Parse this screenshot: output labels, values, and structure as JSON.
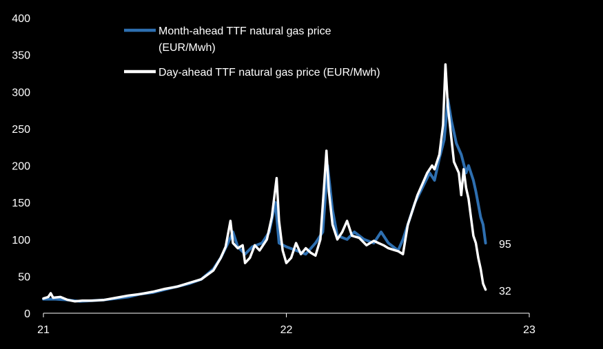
{
  "chart_data": {
    "type": "line",
    "title": "",
    "xlabel": "",
    "ylabel": "",
    "ylim": [
      0,
      400
    ],
    "xlim": [
      21,
      23
    ],
    "y_ticks": [
      0,
      50,
      100,
      150,
      200,
      250,
      300,
      350,
      400
    ],
    "x_ticks": [
      21,
      22,
      23
    ],
    "y_tick_labels": [
      "0",
      "50",
      "100",
      "150",
      "200",
      "250",
      "300",
      "350",
      "400"
    ],
    "x_tick_labels": [
      "21",
      "22",
      "23"
    ],
    "legend_position": "top",
    "grid": false,
    "background": "#000000",
    "series": [
      {
        "name": "Month-ahead TTF natural gas price (EUR/Mwh)",
        "legend_lines": [
          "Month-ahead TTF natural gas price",
          "(EUR/Mwh)"
        ],
        "color": "#2e6fb0",
        "end_label": "95",
        "points": [
          [
            21.0,
            19
          ],
          [
            21.05,
            19
          ],
          [
            21.1,
            18
          ],
          [
            21.15,
            16
          ],
          [
            21.2,
            17
          ],
          [
            21.25,
            18
          ],
          [
            21.3,
            20
          ],
          [
            21.35,
            22
          ],
          [
            21.4,
            26
          ],
          [
            21.45,
            28
          ],
          [
            21.5,
            32
          ],
          [
            21.55,
            36
          ],
          [
            21.6,
            40
          ],
          [
            21.65,
            46
          ],
          [
            21.7,
            60
          ],
          [
            21.73,
            75
          ],
          [
            21.76,
            95
          ],
          [
            21.78,
            110
          ],
          [
            21.8,
            90
          ],
          [
            21.83,
            80
          ],
          [
            21.86,
            90
          ],
          [
            21.9,
            95
          ],
          [
            21.93,
            110
          ],
          [
            21.955,
            150
          ],
          [
            21.97,
            95
          ],
          [
            22.0,
            90
          ],
          [
            22.04,
            85
          ],
          [
            22.08,
            80
          ],
          [
            22.12,
            95
          ],
          [
            22.15,
            110
          ],
          [
            22.17,
            200
          ],
          [
            22.19,
            140
          ],
          [
            22.21,
            105
          ],
          [
            22.25,
            100
          ],
          [
            22.28,
            110
          ],
          [
            22.32,
            100
          ],
          [
            22.36,
            95
          ],
          [
            22.39,
            110
          ],
          [
            22.42,
            95
          ],
          [
            22.44,
            90
          ],
          [
            22.46,
            85
          ],
          [
            22.48,
            100
          ],
          [
            22.5,
            120
          ],
          [
            22.53,
            150
          ],
          [
            22.56,
            170
          ],
          [
            22.59,
            190
          ],
          [
            22.61,
            180
          ],
          [
            22.63,
            210
          ],
          [
            22.65,
            235
          ],
          [
            22.665,
            290
          ],
          [
            22.68,
            260
          ],
          [
            22.7,
            230
          ],
          [
            22.72,
            215
          ],
          [
            22.74,
            190
          ],
          [
            22.75,
            200
          ],
          [
            22.77,
            180
          ],
          [
            22.78,
            165
          ],
          [
            22.8,
            130
          ],
          [
            22.81,
            120
          ],
          [
            22.82,
            95
          ]
        ]
      },
      {
        "name": "Day-ahead TTF natural gas price (EUR/Mwh)",
        "legend_lines": [
          "Day-ahead TTF natural gas price (EUR/Mwh)"
        ],
        "color": "#ffffff",
        "end_label": "32",
        "points": [
          [
            21.0,
            20
          ],
          [
            21.02,
            22
          ],
          [
            21.03,
            27
          ],
          [
            21.04,
            21
          ],
          [
            21.07,
            22
          ],
          [
            21.1,
            18
          ],
          [
            21.13,
            16
          ],
          [
            21.16,
            17
          ],
          [
            21.2,
            17
          ],
          [
            21.25,
            18
          ],
          [
            21.3,
            21
          ],
          [
            21.35,
            24
          ],
          [
            21.4,
            26
          ],
          [
            21.45,
            29
          ],
          [
            21.5,
            33
          ],
          [
            21.55,
            36
          ],
          [
            21.6,
            41
          ],
          [
            21.65,
            46
          ],
          [
            21.7,
            58
          ],
          [
            21.73,
            75
          ],
          [
            21.75,
            90
          ],
          [
            21.77,
            125
          ],
          [
            21.78,
            95
          ],
          [
            21.8,
            88
          ],
          [
            21.82,
            92
          ],
          [
            21.83,
            68
          ],
          [
            21.85,
            75
          ],
          [
            21.87,
            92
          ],
          [
            21.89,
            85
          ],
          [
            21.92,
            100
          ],
          [
            21.94,
            130
          ],
          [
            21.96,
            183
          ],
          [
            21.97,
            125
          ],
          [
            21.985,
            85
          ],
          [
            22.0,
            68
          ],
          [
            22.02,
            75
          ],
          [
            22.04,
            95
          ],
          [
            22.06,
            80
          ],
          [
            22.08,
            88
          ],
          [
            22.1,
            82
          ],
          [
            22.12,
            78
          ],
          [
            22.14,
            100
          ],
          [
            22.155,
            170
          ],
          [
            22.165,
            220
          ],
          [
            22.175,
            165
          ],
          [
            22.19,
            120
          ],
          [
            22.21,
            100
          ],
          [
            22.23,
            110
          ],
          [
            22.25,
            125
          ],
          [
            22.27,
            105
          ],
          [
            22.3,
            102
          ],
          [
            22.33,
            92
          ],
          [
            22.36,
            98
          ],
          [
            22.38,
            95
          ],
          [
            22.4,
            92
          ],
          [
            22.42,
            88
          ],
          [
            22.44,
            86
          ],
          [
            22.46,
            84
          ],
          [
            22.48,
            80
          ],
          [
            22.5,
            120
          ],
          [
            22.52,
            140
          ],
          [
            22.54,
            160
          ],
          [
            22.56,
            175
          ],
          [
            22.58,
            190
          ],
          [
            22.6,
            200
          ],
          [
            22.61,
            195
          ],
          [
            22.63,
            215
          ],
          [
            22.645,
            255
          ],
          [
            22.655,
            337
          ],
          [
            22.665,
            280
          ],
          [
            22.68,
            235
          ],
          [
            22.69,
            205
          ],
          [
            22.71,
            190
          ],
          [
            22.72,
            160
          ],
          [
            22.73,
            195
          ],
          [
            22.74,
            170
          ],
          [
            22.75,
            155
          ],
          [
            22.76,
            130
          ],
          [
            22.77,
            105
          ],
          [
            22.78,
            95
          ],
          [
            22.79,
            75
          ],
          [
            22.8,
            60
          ],
          [
            22.81,
            40
          ],
          [
            22.82,
            32
          ]
        ]
      }
    ]
  }
}
